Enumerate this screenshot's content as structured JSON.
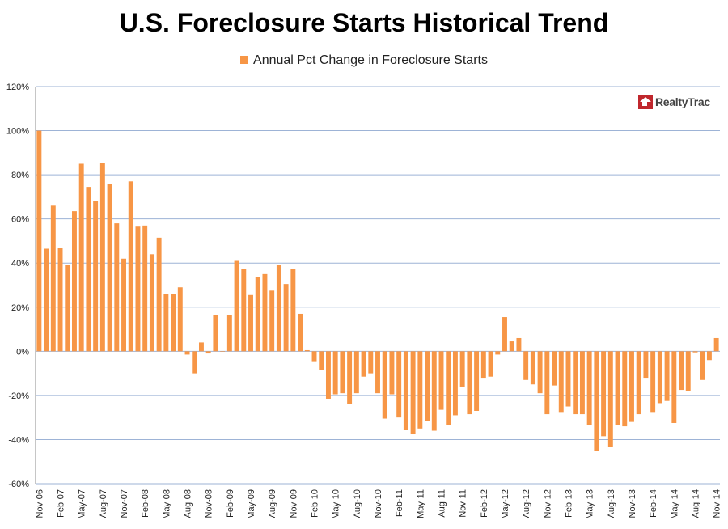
{
  "chart_data": {
    "type": "bar",
    "title": "U.S. Foreclosure Starts Historical Trend",
    "legend": {
      "label": "Annual Pct Change in Foreclosure Starts",
      "position": "top"
    },
    "logo_text": "RealtyTrac",
    "bar_color": "#F79646",
    "grid_color": "#9DB3D6",
    "ylim": [
      -60,
      120
    ],
    "y_ticks": [
      -60,
      -40,
      -20,
      0,
      20,
      40,
      60,
      80,
      100,
      120
    ],
    "y_tick_labels": [
      "-60%",
      "-40%",
      "-20%",
      "0%",
      "20%",
      "40%",
      "60%",
      "80%",
      "100%",
      "120%"
    ],
    "grid": true,
    "categories": [
      "Nov-06",
      "Dec-06",
      "Jan-07",
      "Feb-07",
      "Mar-07",
      "Apr-07",
      "May-07",
      "Jun-07",
      "Jul-07",
      "Aug-07",
      "Sep-07",
      "Oct-07",
      "Nov-07",
      "Dec-07",
      "Jan-08",
      "Feb-08",
      "Mar-08",
      "Apr-08",
      "May-08",
      "Jun-08",
      "Jul-08",
      "Aug-08",
      "Sep-08",
      "Oct-08",
      "Nov-08",
      "Dec-08",
      "Jan-09",
      "Feb-09",
      "Mar-09",
      "Apr-09",
      "May-09",
      "Jun-09",
      "Jul-09",
      "Aug-09",
      "Sep-09",
      "Oct-09",
      "Nov-09",
      "Dec-09",
      "Jan-10",
      "Feb-10",
      "Mar-10",
      "Apr-10",
      "May-10",
      "Jun-10",
      "Jul-10",
      "Aug-10",
      "Sep-10",
      "Oct-10",
      "Nov-10",
      "Dec-10",
      "Jan-11",
      "Feb-11",
      "Mar-11",
      "Apr-11",
      "May-11",
      "Jun-11",
      "Jul-11",
      "Aug-11",
      "Sep-11",
      "Oct-11",
      "Nov-11",
      "Dec-11",
      "Jan-12",
      "Feb-12",
      "Mar-12",
      "Apr-12",
      "May-12",
      "Jun-12",
      "Jul-12",
      "Aug-12",
      "Sep-12",
      "Oct-12",
      "Nov-12",
      "Dec-12",
      "Jan-13",
      "Feb-13",
      "Mar-13",
      "Apr-13",
      "May-13",
      "Jun-13",
      "Jul-13",
      "Aug-13",
      "Sep-13",
      "Oct-13",
      "Nov-13",
      "Dec-13",
      "Jan-14",
      "Feb-14",
      "Mar-14",
      "Apr-14",
      "May-14",
      "Jun-14",
      "Jul-14",
      "Aug-14",
      "Sep-14",
      "Oct-14",
      "Nov-14"
    ],
    "x_tick_labels": [
      "Nov-06",
      "",
      "",
      "Feb-07",
      "",
      "",
      "May-07",
      "",
      "",
      "Aug-07",
      "",
      "",
      "Nov-07",
      "",
      "",
      "Feb-08",
      "",
      "",
      "May-08",
      "",
      "",
      "Aug-08",
      "",
      "",
      "Nov-08",
      "",
      "",
      "Feb-09",
      "",
      "",
      "May-09",
      "",
      "",
      "Aug-09",
      "",
      "",
      "Nov-09",
      "",
      "",
      "Feb-10",
      "",
      "",
      "May-10",
      "",
      "",
      "Aug-10",
      "",
      "",
      "Nov-10",
      "",
      "",
      "Feb-11",
      "",
      "",
      "May-11",
      "",
      "",
      "Aug-11",
      "",
      "",
      "Nov-11",
      "",
      "",
      "Feb-12",
      "",
      "",
      "May-12",
      "",
      "",
      "Aug-12",
      "",
      "",
      "Nov-12",
      "",
      "",
      "Feb-13",
      "",
      "",
      "May-13",
      "",
      "",
      "Aug-13",
      "",
      "",
      "Nov-13",
      "",
      "",
      "Feb-14",
      "",
      "",
      "May-14",
      "",
      "",
      "Aug-14",
      "",
      "",
      "Nov-14"
    ],
    "values": [
      100,
      46.5,
      66,
      47,
      39,
      63.5,
      85,
      74.5,
      68,
      85.5,
      76,
      58,
      42,
      77,
      56.5,
      57,
      44,
      51.5,
      26,
      26,
      29,
      -1.5,
      -10,
      4,
      -1,
      16.5,
      0,
      16.5,
      41,
      37.5,
      25.5,
      33.5,
      35,
      27.5,
      39,
      30.5,
      37.5,
      17,
      0.5,
      -4.5,
      -8.5,
      -21.5,
      -19.5,
      -19,
      -24,
      -19,
      -11.5,
      -10,
      -19,
      -30.5,
      -19.5,
      -30,
      -35.5,
      -37.5,
      -35,
      -31.5,
      -36,
      -26.5,
      -33.5,
      -29,
      -16,
      -28.5,
      -27,
      -12,
      -11.5,
      -1.5,
      15.5,
      4.5,
      6,
      -13,
      -15,
      -19,
      -28.5,
      -15.5,
      -27.5,
      -25,
      -28.5,
      -28.5,
      -33.5,
      -45,
      -38.5,
      -43.5,
      -33.5,
      -34,
      -32,
      -28.5,
      -12,
      -27.5,
      -23.5,
      -22.5,
      -32.5,
      -17.5,
      -18,
      -0.5,
      -13,
      -4,
      6
    ]
  }
}
